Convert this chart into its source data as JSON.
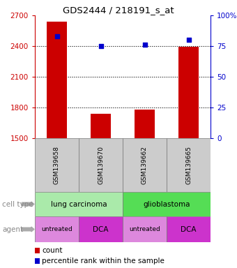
{
  "title": "GDS2444 / 218191_s_at",
  "samples": [
    "GSM139658",
    "GSM139670",
    "GSM139662",
    "GSM139665"
  ],
  "bar_values": [
    2640,
    1740,
    1780,
    2390
  ],
  "bar_base": 1500,
  "bar_color": "#cc0000",
  "percentile_values": [
    83,
    75,
    76,
    80
  ],
  "percentile_color": "#0000cc",
  "ylim_left": [
    1500,
    2700
  ],
  "ylim_right": [
    0,
    100
  ],
  "yticks_left": [
    1500,
    1800,
    2100,
    2400,
    2700
  ],
  "yticks_right": [
    0,
    25,
    50,
    75,
    100
  ],
  "ytick_labels_right": [
    "0",
    "25",
    "50",
    "75",
    "100%"
  ],
  "hlines": [
    1800,
    2100,
    2400
  ],
  "cell_types": [
    [
      "lung carcinoma",
      2
    ],
    [
      "glioblastoma",
      2
    ]
  ],
  "cell_type_colors": [
    "#aaeaaa",
    "#55dd55"
  ],
  "agents": [
    "untreated",
    "DCA",
    "untreated",
    "DCA"
  ],
  "agent_colors": {
    "untreated": "#dd88dd",
    "DCA": "#cc33cc"
  },
  "sample_bg_color": "#cccccc",
  "label_cell_type": "cell type",
  "label_agent": "agent",
  "legend_count": "count",
  "legend_percentile": "percentile rank within the sample",
  "left_ycolor": "#cc0000",
  "right_ycolor": "#0000cc"
}
